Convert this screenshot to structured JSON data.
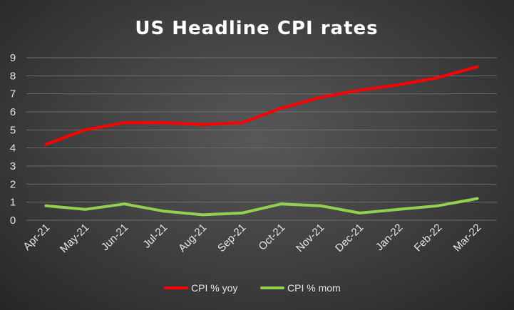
{
  "chart_data": {
    "type": "line",
    "title": "US Headline CPI rates",
    "categories": [
      "Apr-21",
      "May-21",
      "Jun-21",
      "Jul-21",
      "Aug-21",
      "Sep-21",
      "Oct-21",
      "Nov-21",
      "Dec-21",
      "Jan-22",
      "Feb-22",
      "Mar-22"
    ],
    "series": [
      {
        "name": "CPI % yoy",
        "values": [
          4.2,
          5.0,
          5.4,
          5.4,
          5.3,
          5.4,
          6.2,
          6.8,
          7.2,
          7.5,
          7.9,
          8.5
        ],
        "color": "#ff0000"
      },
      {
        "name": "CPI % mom",
        "values": [
          0.8,
          0.6,
          0.9,
          0.5,
          0.3,
          0.4,
          0.9,
          0.8,
          0.4,
          0.6,
          0.8,
          1.2
        ],
        "color": "#92d050"
      }
    ],
    "ylim": [
      0,
      9
    ],
    "yticks": [
      0,
      1,
      2,
      3,
      4,
      5,
      6,
      7,
      8,
      9
    ],
    "grid": true,
    "legend_position": "bottom"
  }
}
